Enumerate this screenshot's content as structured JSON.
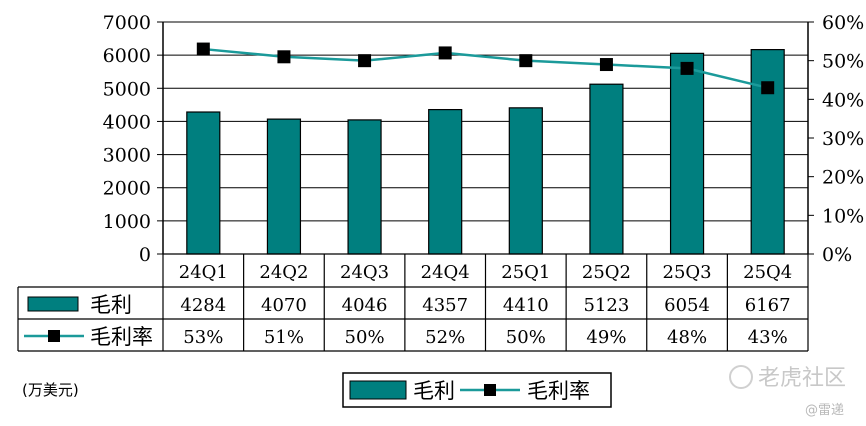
{
  "chart_data": {
    "type": "bar",
    "categories": [
      "24Q1",
      "24Q2",
      "24Q3",
      "24Q4",
      "25Q1",
      "25Q2",
      "25Q3",
      "25Q4"
    ],
    "series": [
      {
        "name": "毛利",
        "type": "bar",
        "axis": "left",
        "values": [
          4284,
          4070,
          4046,
          4357,
          4410,
          5123,
          6054,
          6167
        ]
      },
      {
        "name": "毛利率",
        "type": "line",
        "axis": "right",
        "values": [
          53,
          51,
          50,
          52,
          50,
          49,
          48,
          43
        ],
        "labels": [
          "53%",
          "51%",
          "50%",
          "52%",
          "50%",
          "49%",
          "48%",
          "43%"
        ]
      }
    ],
    "ylim": [
      0,
      7000
    ],
    "y_ticks": [
      "0",
      "1000",
      "2000",
      "3000",
      "4000",
      "5000",
      "6000",
      "7000"
    ],
    "y2lim": [
      0,
      60
    ],
    "y2_ticks": [
      "0%",
      "10%",
      "20%",
      "30%",
      "40%",
      "50%",
      "60%"
    ],
    "unit": "(万美元)",
    "legend_position": "bottom",
    "grid": true,
    "data_table": true,
    "colors": {
      "bar": "#007f7f",
      "line": "#1b9a9a",
      "marker": "#000000",
      "border": "#000000"
    }
  },
  "watermark": {
    "brand": "老虎社区",
    "author": "@雷递"
  }
}
